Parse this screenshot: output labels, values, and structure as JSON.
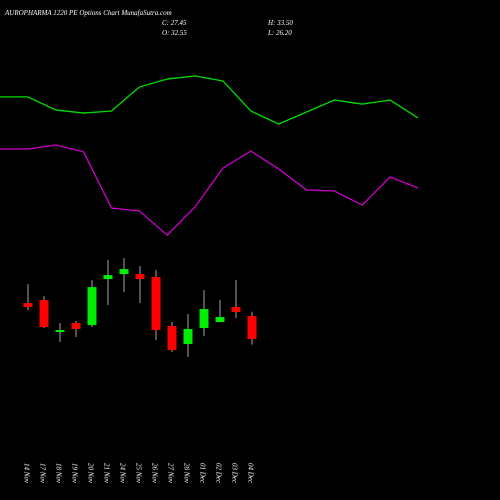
{
  "chart_data": [
    {
      "type": "line",
      "categories": [
        null,
        null,
        null,
        null,
        null,
        null,
        null,
        null,
        null,
        null,
        null,
        null,
        null,
        null,
        null,
        null
      ],
      "ylim": [
        0,
        100
      ],
      "series": [
        {
          "color": "#00dd00",
          "values": [
            72.9,
            72.9,
            66.7,
            65.2,
            66.2,
            77.6,
            81.4,
            82.9,
            80.5,
            66.2,
            60.0,
            65.7,
            71.4,
            69.5,
            71.4,
            62.9
          ]
        },
        {
          "color": "#cc00cc",
          "values": [
            48.1,
            48.1,
            50.0,
            46.7,
            20.0,
            18.6,
            7.1,
            20.5,
            39.0,
            47.1,
            38.6,
            28.6,
            28.1,
            21.4,
            34.8,
            29.5
          ]
        }
      ]
    },
    {
      "type": "candlestick",
      "title": "AUROPHARMA 1220 PE Options  Chart MunafaSutra.com",
      "info": [
        "C: 27.45",
        "O: 32.55",
        "H: 33.50",
        "L: 26.20"
      ],
      "categories": [
        "14 Nov",
        "17 Nov",
        "18 Nov",
        "19 Nov",
        "20 Nov",
        "21 Nov",
        "24 Nov",
        "25 Nov",
        "26 Nov",
        "27 Nov",
        "28 Nov",
        "01 Dec",
        "02 Dec",
        "03 Dec",
        "04 Dec"
      ],
      "open": [
        35.43,
        36.1,
        29.0,
        31.0,
        30.55,
        40.75,
        41.86,
        41.86,
        41.2,
        30.33,
        26.34,
        29.89,
        31.22,
        34.55,
        32.55
      ],
      "high": [
        39.64,
        36.98,
        31.0,
        31.44,
        40.53,
        44.97,
        45.41,
        43.64,
        42.75,
        31.22,
        32.99,
        38.31,
        36.1,
        40.53,
        33.5
      ],
      "low": [
        33.88,
        29.89,
        26.79,
        27.89,
        30.11,
        34.99,
        37.87,
        35.43,
        27.23,
        24.57,
        23.46,
        28.12,
        31.22,
        32.11,
        26.2
      ],
      "close": [
        34.55,
        30.11,
        29.45,
        29.67,
        38.98,
        41.64,
        42.97,
        40.75,
        29.45,
        25.01,
        29.67,
        34.1,
        32.33,
        33.44,
        27.45
      ],
      "ylim": [
        22.8,
        47.2
      ],
      "up_color": "#00ee00",
      "down_color": "#ff0000"
    }
  ]
}
